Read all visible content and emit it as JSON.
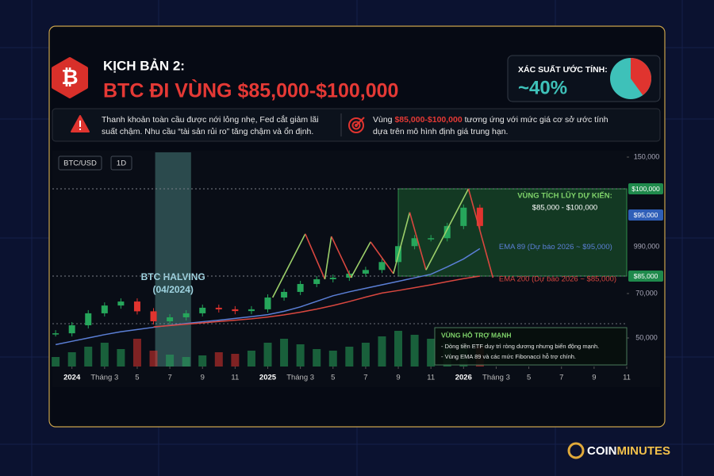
{
  "header": {
    "icon": "₿",
    "kicker": "KỊCH BẢN 2:",
    "title": "BTC ĐI VÙNG $85,000-$100,000"
  },
  "probability": {
    "label": "XÁC SUẤT ƯỚC TÍNH:",
    "value_label": "~40%",
    "value": 40,
    "color": "#e0342f",
    "rest_color": "#3ec1b9"
  },
  "notes": {
    "left": [
      "Thanh khoản toàn cầu được nới lỏng nhẹ, Fed cắt giảm lãi",
      "suất chậm. Nhu cầu “tài sản rủi ro” tăng chậm và ổn định."
    ],
    "right": [
      [
        "Vùng ",
        "$85,000-$100,000",
        " tương ứng với mức giá cơ sở ước tính"
      ],
      [
        "dựa trên mô hình định giá trung hạn."
      ]
    ]
  },
  "chart_data": {
    "type": "candlestick",
    "symbol": "BTC/USD",
    "interval": "1D",
    "x": [
      -1,
      0,
      1,
      2,
      3,
      4,
      5,
      6,
      7,
      8,
      9,
      10,
      11,
      12,
      13,
      14,
      15,
      16,
      17,
      18,
      19,
      20,
      21,
      22,
      23,
      24,
      25
    ],
    "price": {
      "up_color": "#26a65b",
      "down_color": "#e0342f",
      "values": [
        52100,
        55700,
        61100,
        64600,
        66400,
        62000,
        57500,
        59300,
        61100,
        63600,
        62900,
        62100,
        62900,
        68200,
        71400,
        78200,
        82300,
        83600,
        85400,
        86000,
        87300,
        89900,
        91200,
        91200,
        93200,
        96400,
        93200
      ]
    },
    "volume": [
      12,
      18,
      25,
      30,
      22,
      35,
      20,
      15,
      12,
      14,
      18,
      16,
      20,
      30,
      35,
      28,
      22,
      20,
      25,
      30,
      38,
      45,
      40,
      35,
      30,
      28,
      26
    ],
    "ema": [
      {
        "name": "EMA 89 (Dự báo 2026 ~ $95,000)",
        "color": "#5b7fd6",
        "values": [
          47000,
          48500,
          50000,
          51500,
          52800,
          53800,
          54800,
          55700,
          56500,
          57300,
          58000,
          58800,
          59600,
          60500,
          62000,
          64000,
          66500,
          69000,
          71500,
          74500,
          77500,
          80500,
          83500,
          85300,
          86500,
          87800,
          89500
        ]
      },
      {
        "name": "EMA 200 (Dự báo 2026 ~ $85,000)",
        "color": "#d9473f",
        "values": [
          null,
          null,
          null,
          null,
          null,
          null,
          55000,
          55600,
          56200,
          56800,
          57400,
          58000,
          58600,
          59400,
          60400,
          61600,
          63000,
          64600,
          66400,
          68400,
          70400,
          72600,
          75000,
          77500,
          80200,
          82800,
          85000
        ]
      }
    ],
    "projection": {
      "up_color": "#9ccf6a",
      "down_color": "#d9473f",
      "x": [
        12.3,
        14.3,
        15.5,
        15.9,
        17.1,
        18.3,
        19.7,
        20.7,
        21.7,
        24.3,
        25.8
      ],
      "values": [
        68200,
        91900,
        82300,
        91500,
        83600,
        90600,
        85400,
        95500,
        86000,
        100000,
        83600
      ]
    },
    "xlim": [
      -1.2,
      34
    ],
    "xticks": [
      {
        "value": 0,
        "label": "2024"
      },
      {
        "value": 2,
        "label": "Tháng 3"
      },
      {
        "value": 4,
        "label": "5"
      },
      {
        "value": 6,
        "label": "7"
      },
      {
        "value": 8,
        "label": "9"
      },
      {
        "value": 10,
        "label": "11"
      },
      {
        "value": 12,
        "label": "2025"
      },
      {
        "value": 14,
        "label": "Tháng 3"
      },
      {
        "value": 16,
        "label": "5"
      },
      {
        "value": 18,
        "label": "7"
      },
      {
        "value": 20,
        "label": "9"
      },
      {
        "value": 22,
        "label": "11"
      },
      {
        "value": 24,
        "label": "2026"
      },
      {
        "value": 26,
        "label": "Tháng 3"
      },
      {
        "value": 28,
        "label": "5"
      },
      {
        "value": 30,
        "label": "7"
      },
      {
        "value": 32,
        "label": "9"
      },
      {
        "value": 34,
        "label": "11"
      }
    ],
    "yticks": [
      {
        "value": 50000,
        "label": "50,000"
      },
      {
        "value": 70000,
        "label": "70,000"
      },
      {
        "value": 150000,
        "label": "150,000"
      }
    ],
    "axis_note": "990,000",
    "levels": [
      {
        "value": 85000,
        "label": "$85,000",
        "color": "#1f8a4c"
      },
      {
        "value": 95000,
        "label": "$95,000",
        "color": "#2f5fb8"
      },
      {
        "value": 100000,
        "label": "$100,000",
        "color": "#1f8a4c"
      }
    ],
    "zone": {
      "title": "VÙNG TÍCH LŨY DỰ KIẾN:",
      "range": "$85,000 - $100,000",
      "from": 85000,
      "to": 100000,
      "x_start": 20
    },
    "halving": {
      "label": "BTC HALVING",
      "date": "(04/2024)",
      "x_from": 5.1,
      "x_to": 7.3
    },
    "support": {
      "title": "VÙNG HỖ TRỢ MẠNH",
      "lines": [
        "- Dòng tiền ETF duy trì ròng dương nhưng biến động mạnh.",
        "- Vùng EMA 89 và các mức Fibonacci hỗ trợ chính."
      ]
    }
  },
  "brand": [
    "COIN",
    "MINUTES"
  ]
}
